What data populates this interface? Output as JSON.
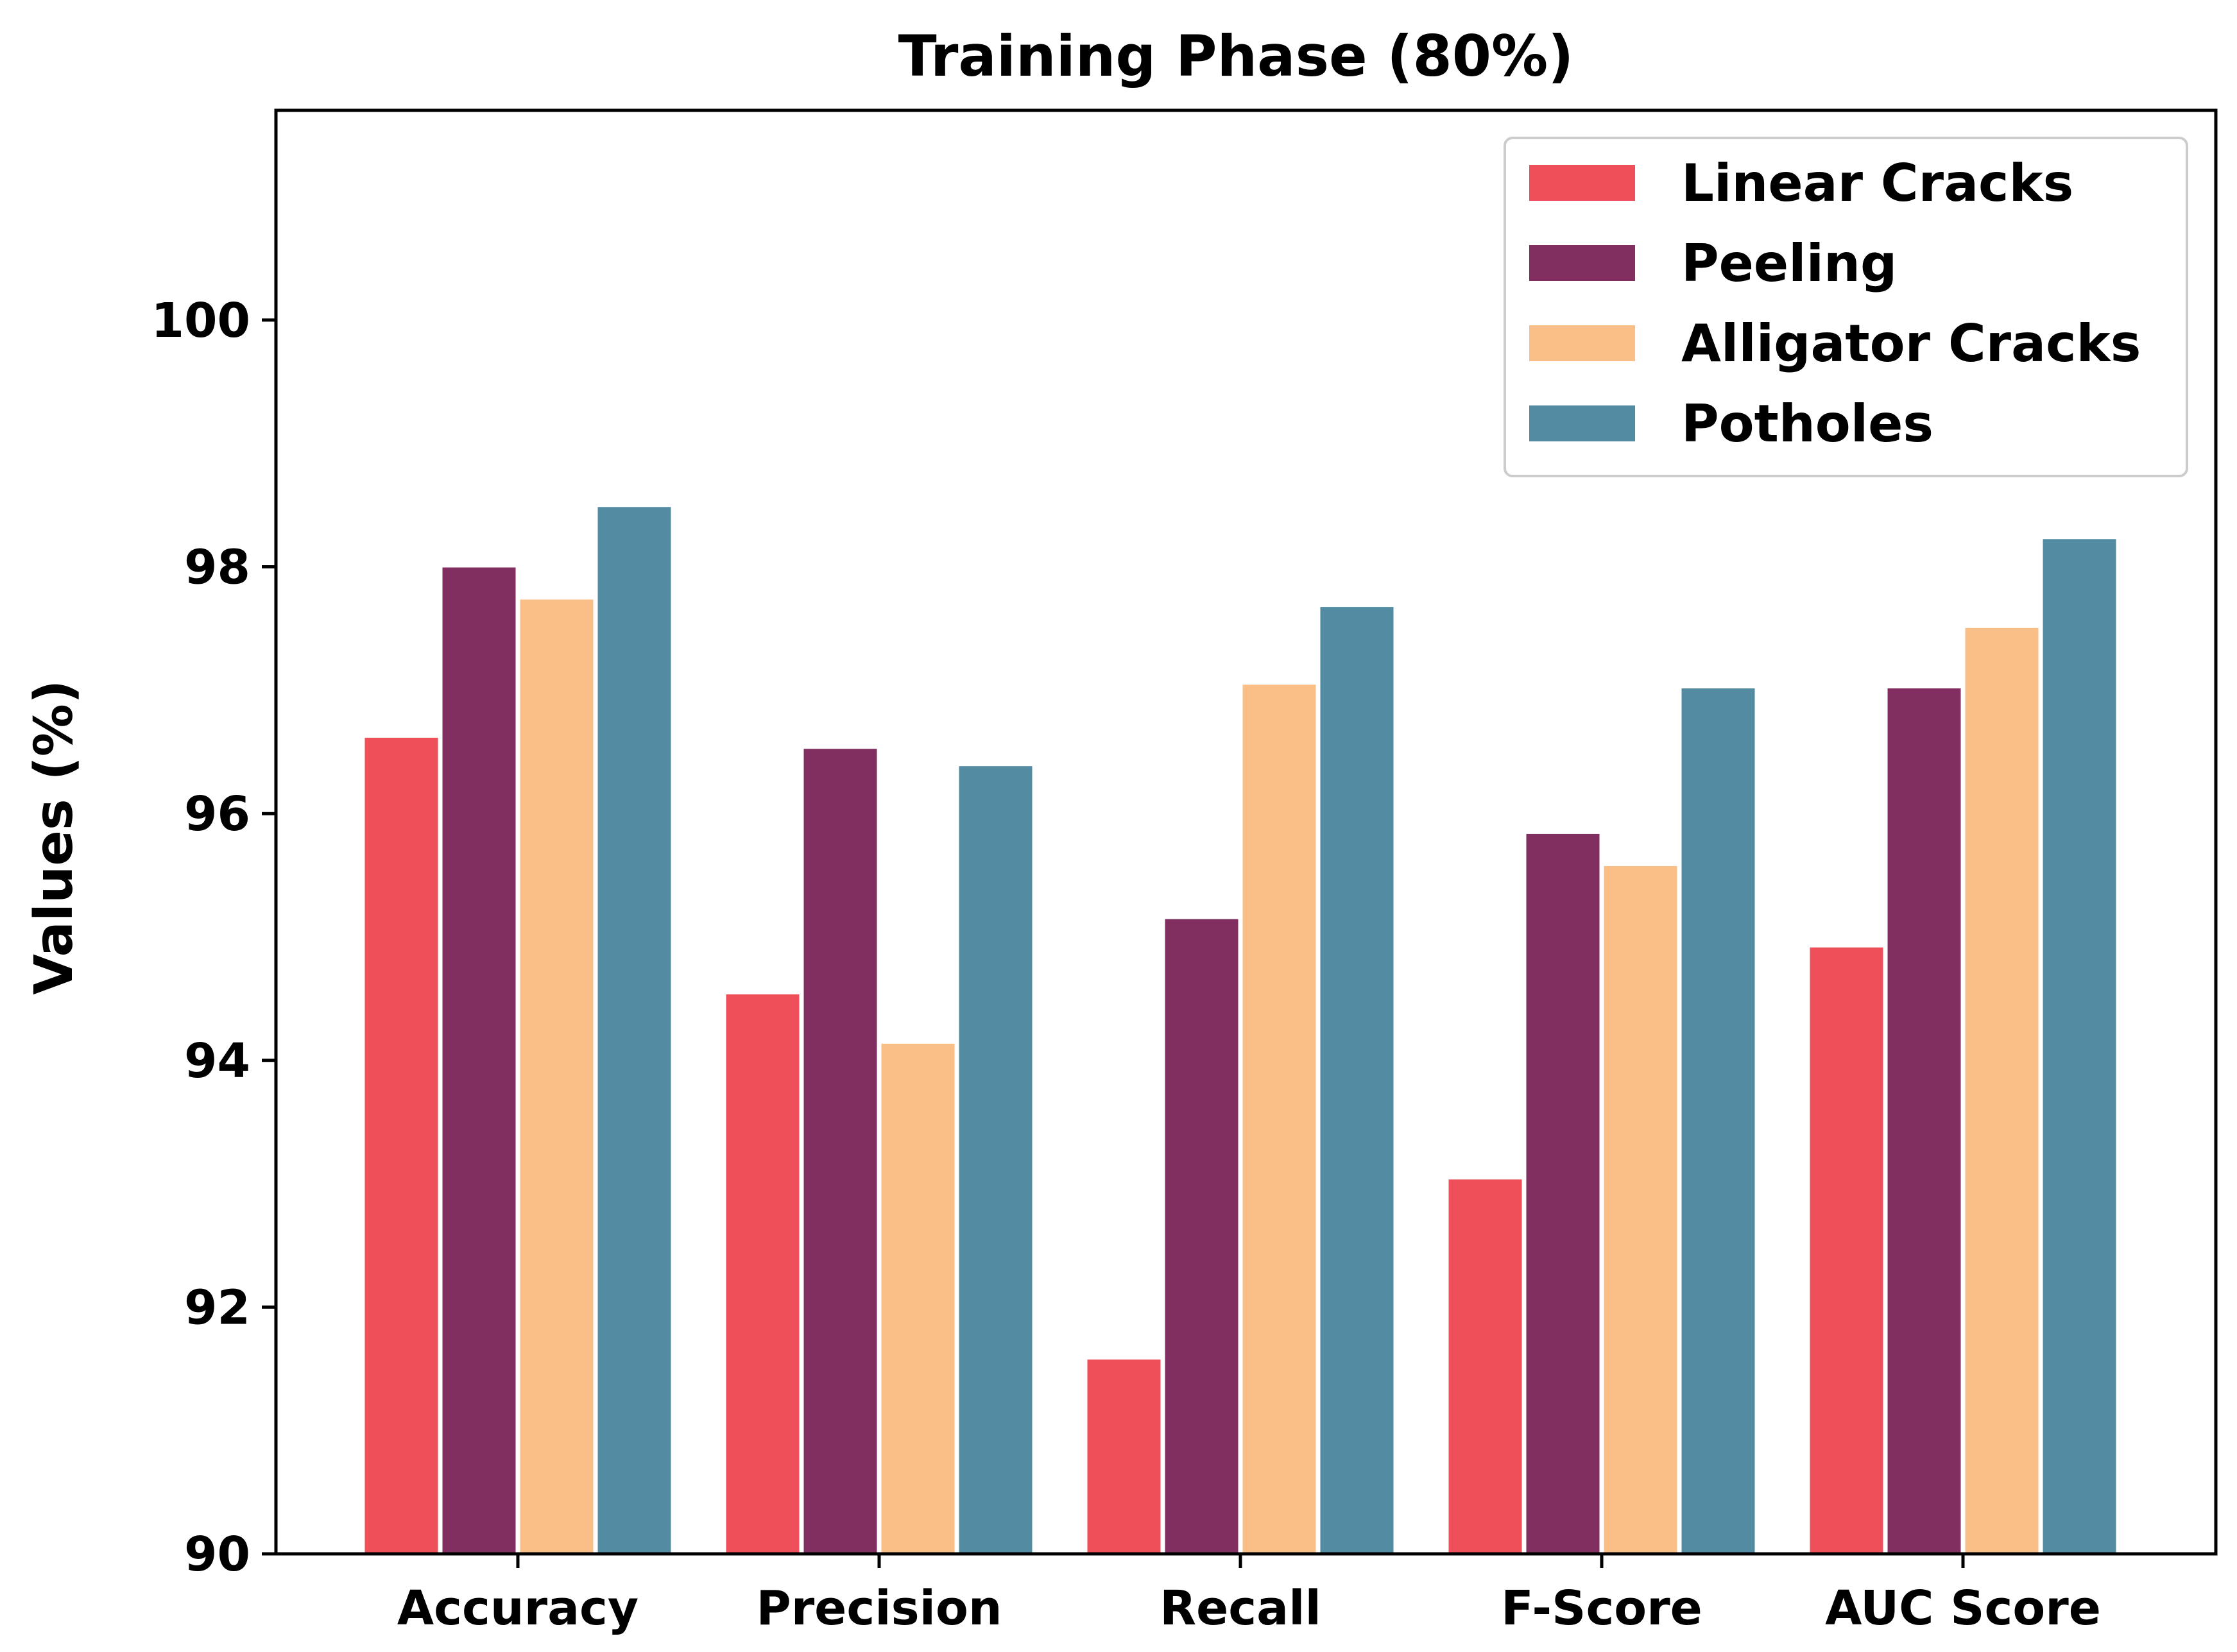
{
  "chart_data": {
    "type": "bar",
    "title": "Training Phase (80%)",
    "xlabel": "",
    "ylabel": "Values (%)",
    "ylim": [
      90,
      101.7
    ],
    "yticks": [
      90,
      92,
      94,
      96,
      98,
      100
    ],
    "categories": [
      "Accuracy",
      "Precision",
      "Recall",
      "F-Score",
      "AUC Score"
    ],
    "series": [
      {
        "name": "Linear Cracks",
        "color": "#ef4f59",
        "values": [
          96.62,
          94.54,
          91.58,
          93.04,
          94.92
        ]
      },
      {
        "name": "Peeling",
        "color": "#812f61",
        "values": [
          98.0,
          96.53,
          95.15,
          95.84,
          97.02
        ]
      },
      {
        "name": "Alligator Cracks",
        "color": "#fabe87",
        "values": [
          97.74,
          94.14,
          97.05,
          95.58,
          97.51
        ]
      },
      {
        "name": "Potholes",
        "color": "#538ca2",
        "values": [
          98.49,
          96.39,
          97.68,
          97.02,
          98.23
        ]
      }
    ],
    "legend_position": "top-right",
    "grid": false
  }
}
